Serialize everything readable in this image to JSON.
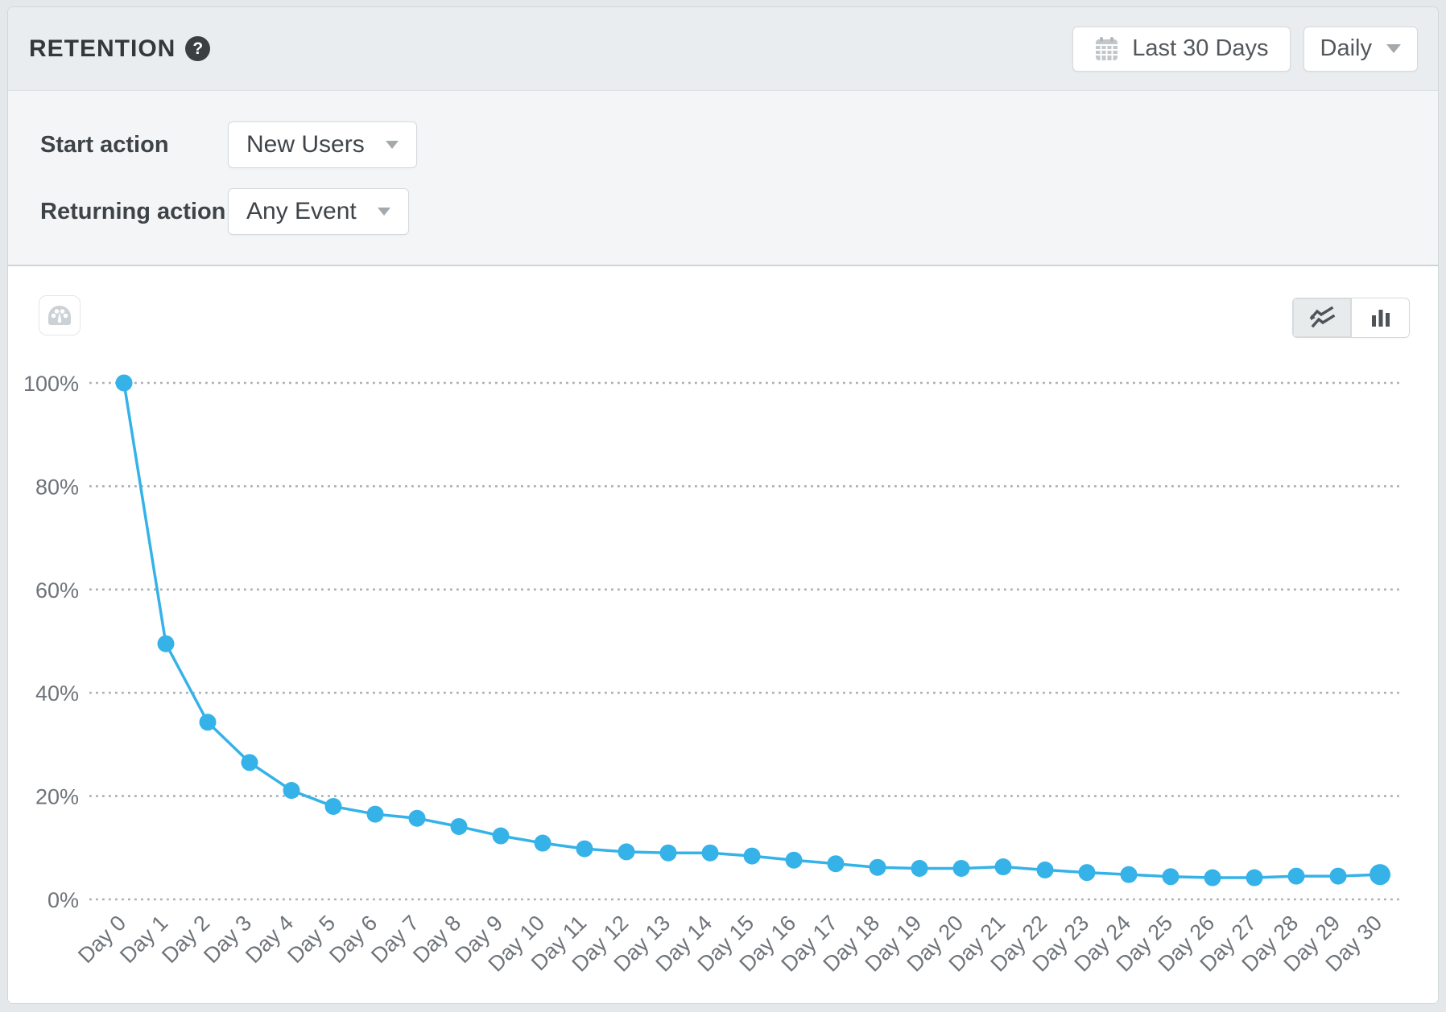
{
  "header": {
    "title": "RETENTION",
    "help_glyph": "?",
    "date_range": "Last 30 Days",
    "granularity": "Daily"
  },
  "controls": {
    "start_label": "Start action",
    "start_value": "New Users",
    "returning_label": "Returning action",
    "returning_value": "Any Event"
  },
  "view_toggle": {
    "selected": "line",
    "options": [
      "line",
      "bar"
    ]
  },
  "colors": {
    "accent": "#35b2e8",
    "grid": "#aaafb4",
    "axis_text": "#6f747a",
    "header_bg": "#e9edef",
    "controls_bg": "#f3f5f6",
    "page_bg": "#e4e8ea",
    "icon_gray": "#54585c",
    "light_icon_gray": "#c9ced2"
  },
  "chart_data": {
    "type": "line",
    "title": "Retention curve",
    "categories": [
      "Day 0",
      "Day 1",
      "Day 2",
      "Day 3",
      "Day 4",
      "Day 5",
      "Day 6",
      "Day 7",
      "Day 8",
      "Day 9",
      "Day 10",
      "Day 11",
      "Day 12",
      "Day 13",
      "Day 14",
      "Day 15",
      "Day 16",
      "Day 17",
      "Day 18",
      "Day 19",
      "Day 20",
      "Day 21",
      "Day 22",
      "Day 23",
      "Day 24",
      "Day 25",
      "Day 26",
      "Day 27",
      "Day 28",
      "Day 29",
      "Day 30"
    ],
    "values": [
      100,
      49.5,
      34.3,
      26.5,
      21.1,
      18.0,
      16.5,
      15.7,
      14.1,
      12.3,
      10.9,
      9.8,
      9.2,
      9.0,
      9.0,
      8.4,
      7.6,
      6.9,
      6.2,
      6.0,
      6.0,
      6.3,
      5.7,
      5.2,
      4.8,
      4.4,
      4.2,
      4.2,
      4.5,
      4.5,
      4.8
    ],
    "xlabel": "",
    "ylabel": "",
    "ylim": [
      0,
      100
    ],
    "ytick_labels": [
      "0%",
      "20%",
      "40%",
      "60%",
      "80%",
      "100%"
    ],
    "grid": "horizontal-dotted",
    "legend": "none",
    "line_color": "#35b2e8",
    "point_color": "#35b2e8"
  }
}
